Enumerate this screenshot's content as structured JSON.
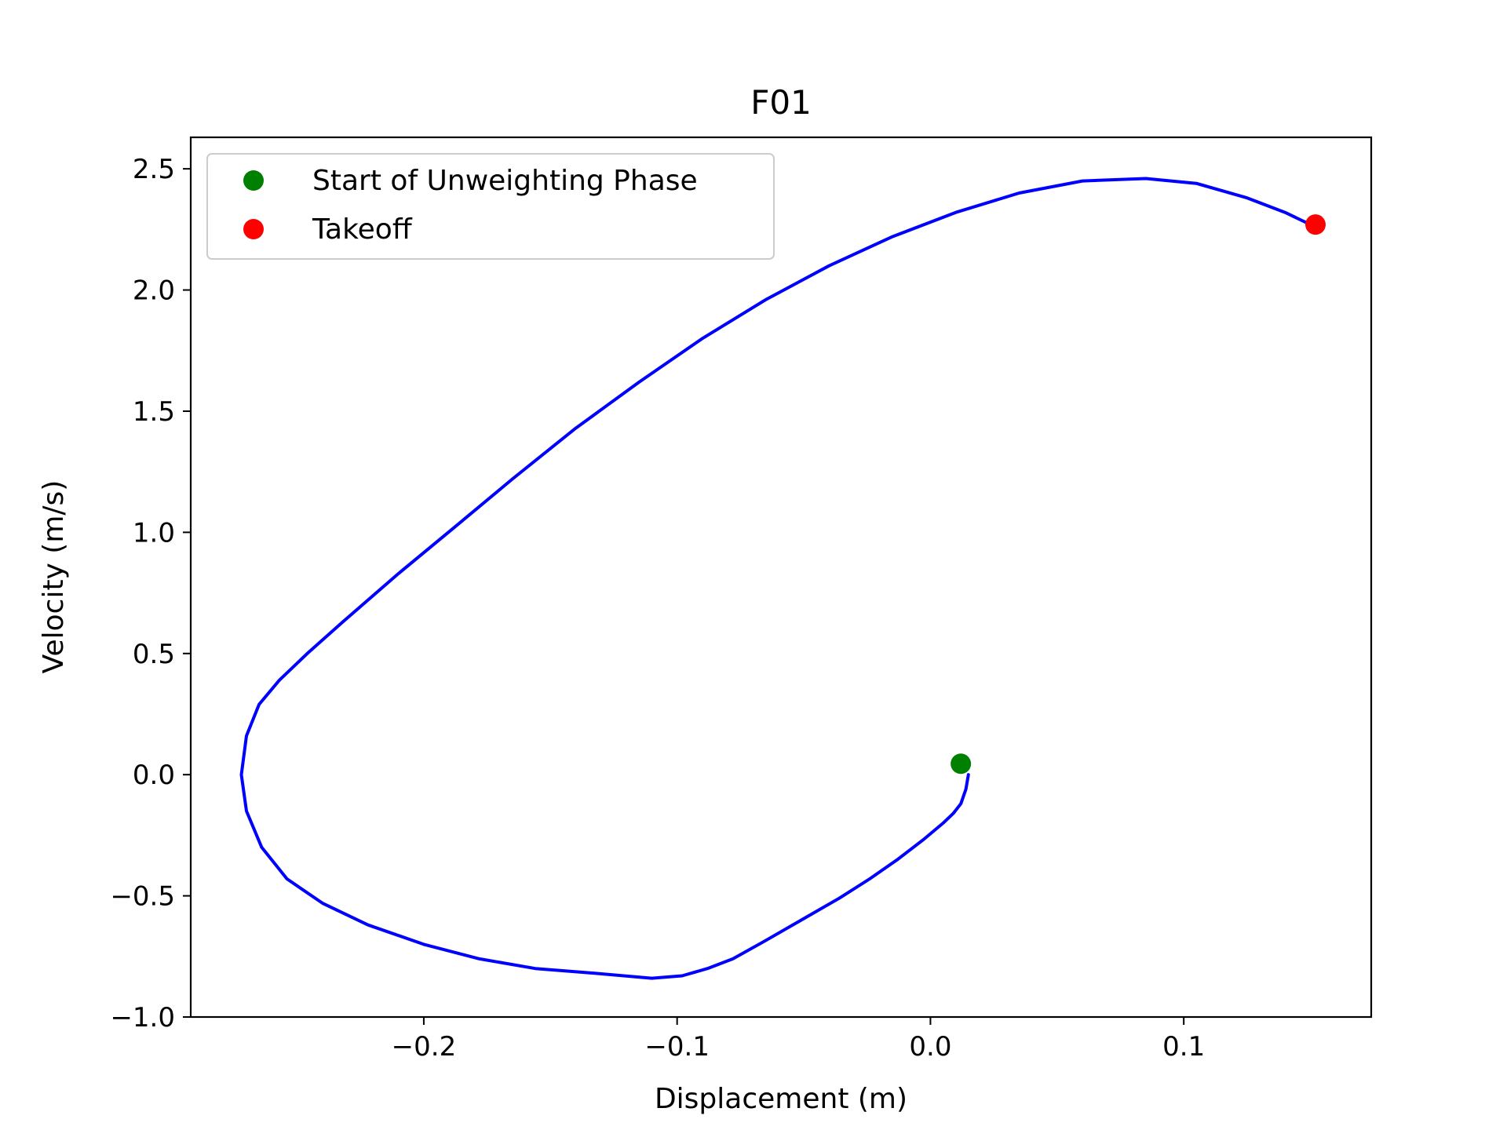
{
  "chart_data": {
    "type": "line",
    "title": "F01",
    "xlabel": "Displacement (m)",
    "ylabel": "Velocity (m/s)",
    "xlim": [
      -0.292,
      0.174
    ],
    "ylim": [
      -1.0,
      2.63
    ],
    "xticks": [
      -0.2,
      -0.1,
      0.0,
      0.1
    ],
    "xtick_labels": [
      "−0.2",
      "−0.1",
      "0.0",
      "0.1"
    ],
    "yticks": [
      -1.0,
      -0.5,
      0.0,
      0.5,
      1.0,
      1.5,
      2.0,
      2.5
    ],
    "ytick_labels": [
      "−1.0",
      "−0.5",
      "0.0",
      "0.5",
      "1.0",
      "1.5",
      "2.0",
      "2.5"
    ],
    "grid": false,
    "legend": {
      "placement": "upper-left",
      "entries": [
        {
          "label": "Start of Unweighting Phase",
          "color": "#008000"
        },
        {
          "label": "Takeoff",
          "color": "#ff0000"
        }
      ]
    },
    "series": [
      {
        "color": "#0000ff",
        "x": [
          0.015,
          0.014,
          0.012,
          0.009,
          0.005,
          -0.003,
          -0.013,
          -0.024,
          -0.036,
          -0.051,
          -0.066,
          -0.078,
          -0.088,
          -0.098,
          -0.11,
          -0.132,
          -0.156,
          -0.178,
          -0.2,
          -0.222,
          -0.24,
          -0.254,
          -0.264,
          -0.27,
          -0.272,
          -0.27,
          -0.265,
          -0.257,
          -0.246,
          -0.232,
          -0.21,
          -0.188,
          -0.165,
          -0.14,
          -0.115,
          -0.09,
          -0.065,
          -0.04,
          -0.015,
          0.01,
          0.035,
          0.06,
          0.085,
          0.105,
          0.125,
          0.14,
          0.15
        ],
        "y": [
          0.0,
          -0.06,
          -0.12,
          -0.16,
          -0.2,
          -0.27,
          -0.35,
          -0.43,
          -0.51,
          -0.6,
          -0.69,
          -0.76,
          -0.8,
          -0.83,
          -0.84,
          -0.82,
          -0.8,
          -0.76,
          -0.7,
          -0.62,
          -0.53,
          -0.43,
          -0.3,
          -0.15,
          0.0,
          0.16,
          0.29,
          0.39,
          0.5,
          0.63,
          0.83,
          1.02,
          1.22,
          1.43,
          1.62,
          1.8,
          1.96,
          2.1,
          2.22,
          2.32,
          2.4,
          2.45,
          2.46,
          2.44,
          2.38,
          2.32,
          2.27
        ]
      }
    ],
    "markers": [
      {
        "label": "Start of Unweighting Phase",
        "x": 0.012,
        "y": 0.045,
        "color": "#008000"
      },
      {
        "label": "Takeoff",
        "x": 0.152,
        "y": 2.27,
        "color": "#ff0000"
      }
    ]
  }
}
